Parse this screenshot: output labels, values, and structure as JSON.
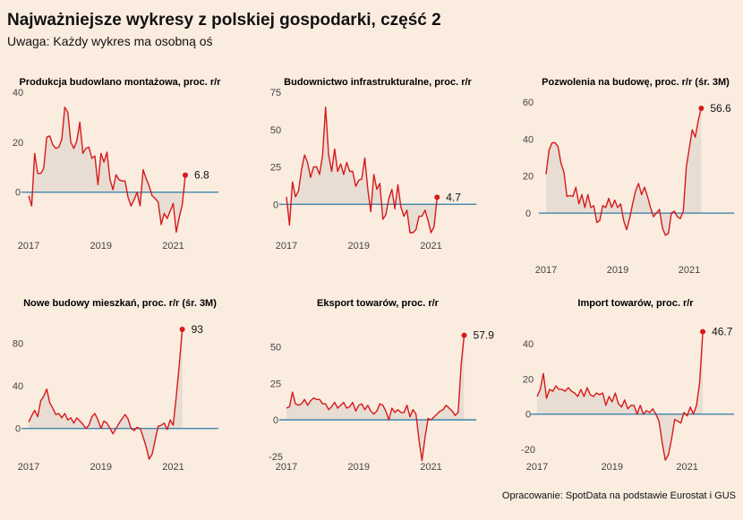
{
  "header": {
    "title": "Najważniejsze wykresy z polskiej gospodarki, część 2",
    "subtitle": "Uwaga: Każdy wykres ma osobną oś"
  },
  "footer": {
    "source": "Opracowanie: SpotData na podstawie Eurostat i GUS"
  },
  "colors": {
    "line": "#d7191c",
    "area": "#e8ddd3",
    "zero_line": "#2b7ba6",
    "background": "#fbece0"
  },
  "chart_data": [
    {
      "type": "area",
      "title": "Produkcja budowlano montażowa, proc. r/r",
      "x_ticks": [
        "2017",
        "2019",
        "2021"
      ],
      "y_ticks": [
        0,
        20,
        40
      ],
      "ylim": [
        -18,
        40
      ],
      "end_label": "6.8",
      "start": "2017-01",
      "values": [
        -1.5,
        -5.5,
        15.5,
        7.5,
        7.5,
        9.5,
        22,
        22.5,
        19,
        17.5,
        18,
        21,
        34,
        32,
        20,
        17.5,
        20.5,
        28,
        15.5,
        17.5,
        18,
        13.5,
        14.5,
        3,
        15.5,
        12,
        16,
        5,
        1,
        7,
        5,
        4.5,
        4.5,
        -2,
        -5.5,
        -3,
        0,
        -5.5,
        9,
        5.5,
        2.5,
        -1.5,
        -2.5,
        -4,
        -13,
        -8.5,
        -10.5,
        -7.5,
        -4.5,
        -16,
        -10,
        -5,
        6.8
      ]
    },
    {
      "type": "area",
      "title": "Budownictwo infrastrukturalne, proc. r/r",
      "x_ticks": [
        "2017",
        "2019",
        "2021"
      ],
      "y_ticks": [
        0,
        25,
        50,
        75
      ],
      "ylim": [
        -22,
        75
      ],
      "end_label": "4.7",
      "start": "2017-01",
      "values": [
        5,
        -14,
        15,
        5,
        9,
        23,
        33,
        28,
        18,
        25,
        25,
        20,
        33,
        65,
        33,
        22,
        37,
        22,
        27,
        20,
        28,
        22,
        22,
        12,
        16,
        17,
        31,
        10,
        -5,
        20,
        10,
        14,
        -10,
        -7,
        4,
        10,
        -3,
        13,
        -2,
        -8,
        -4,
        -19,
        -19,
        -17,
        -8,
        -8,
        -4,
        -11,
        -19,
        -15,
        4.7
      ]
    },
    {
      "type": "area",
      "title": "Pozwolenia na budowę, proc. r/r (śr. 3M)",
      "x_ticks": [
        "2017",
        "2019",
        "2021"
      ],
      "y_ticks": [
        0,
        20,
        40,
        60
      ],
      "ylim": [
        -13,
        60
      ],
      "end_label": "56.6",
      "start": "2017-01",
      "values": [
        21,
        34,
        38,
        38,
        36,
        27,
        22,
        9,
        9.5,
        9,
        14,
        5,
        10,
        3,
        10,
        3,
        4,
        -5,
        -4,
        4,
        3,
        8,
        3,
        7,
        3,
        5,
        -4,
        -9,
        -3,
        5,
        12,
        16,
        10,
        14,
        9,
        3,
        -2,
        0,
        2,
        -8,
        -12,
        -11,
        0,
        1,
        -2,
        -3,
        1,
        25,
        35,
        45,
        41,
        50,
        56.6
      ]
    },
    {
      "type": "area",
      "title": "Nowe budowy mieszkań, proc. r/r (śr. 3M)",
      "x_ticks": [
        "2017",
        "2019",
        "2021"
      ],
      "y_ticks": [
        0,
        40,
        80
      ],
      "ylim": [
        -33,
        93
      ],
      "end_label": "93",
      "start": "2017-01",
      "values": [
        6,
        12,
        17,
        11,
        26,
        30,
        37,
        24,
        19,
        13,
        14,
        10,
        14,
        8,
        10,
        5,
        10,
        7,
        4,
        0,
        3,
        11,
        14,
        8,
        0,
        7,
        5,
        0,
        -5,
        0,
        5,
        9,
        13,
        9,
        0,
        -2,
        1,
        0,
        -8,
        -17,
        -29,
        -24,
        -11,
        2,
        3,
        5,
        -1,
        8,
        3,
        30,
        60,
        93
      ]
    },
    {
      "type": "area",
      "title": "Eksport towarów, proc. r/r",
      "x_ticks": [
        "2017",
        "2019",
        "2021"
      ],
      "y_ticks": [
        -25,
        0,
        25,
        50
      ],
      "ylim": [
        -30,
        62
      ],
      "end_label": "57.9",
      "start": "2017-01",
      "values": [
        8,
        9,
        19,
        11,
        10,
        11,
        14,
        10,
        13,
        15,
        14,
        14,
        11,
        11,
        7,
        9,
        12,
        8,
        10,
        12,
        8,
        9,
        12,
        6,
        10,
        11,
        7,
        10,
        6,
        4,
        6,
        11,
        10,
        6,
        0,
        8,
        5,
        7,
        5,
        5,
        10,
        2,
        7,
        4,
        -14,
        -28,
        -12,
        1,
        0,
        2,
        4,
        6,
        7,
        10,
        8,
        6,
        3,
        5,
        38,
        57.9
      ]
    },
    {
      "type": "area",
      "title": "Import towarów, proc. r/r",
      "x_ticks": [
        "2017",
        "2019",
        "2021"
      ],
      "y_ticks": [
        -20,
        0,
        20,
        40
      ],
      "ylim": [
        -28,
        48
      ],
      "end_label": "46.7",
      "start": "2017-01",
      "values": [
        10,
        14,
        23,
        9,
        14,
        13,
        16,
        14,
        14,
        13,
        15,
        13,
        12,
        10,
        14,
        10,
        15,
        11,
        10,
        12,
        11,
        12,
        5,
        10,
        7,
        12,
        6,
        4,
        8,
        3,
        5,
        5,
        0,
        5,
        0,
        2,
        1,
        3,
        0,
        -4,
        -16,
        -26,
        -23,
        -14,
        -3,
        -4,
        -5,
        1,
        -1,
        4,
        0,
        5,
        18,
        46.7
      ]
    }
  ]
}
